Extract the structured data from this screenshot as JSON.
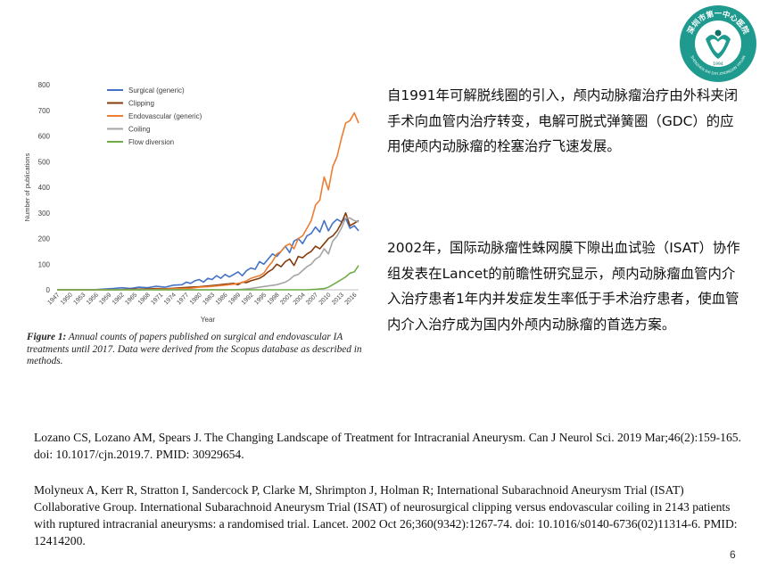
{
  "logo": {
    "top_text": "深圳市第一中心医院",
    "bottom_text": "SHENZHEN SHI DIYI ZHONGXIN YIYUAN",
    "year": "1994",
    "colors": {
      "primary": "#1f9a8e",
      "secondary": "#0f6e66"
    }
  },
  "chart_data": {
    "type": "line",
    "xlabel": "Year",
    "ylabel": "Number of publications",
    "ylim": [
      0,
      800
    ],
    "yticks": [
      0,
      100,
      200,
      300,
      400,
      500,
      600,
      700,
      800
    ],
    "xlim": [
      1947,
      2017
    ],
    "xticks": [
      1947,
      1950,
      1953,
      1956,
      1959,
      1962,
      1965,
      1968,
      1971,
      1974,
      1977,
      1980,
      1983,
      1986,
      1989,
      1992,
      1995,
      1998,
      2001,
      2004,
      2007,
      2010,
      2013,
      2016
    ],
    "legend_position": "top-center",
    "grid": false,
    "series": [
      {
        "name": "Surgical (generic)",
        "color": "#4472c4",
        "x": [
          1947,
          1955,
          1960,
          1962,
          1964,
          1966,
          1968,
          1970,
          1972,
          1974,
          1976,
          1977,
          1978,
          1979,
          1980,
          1981,
          1982,
          1983,
          1984,
          1985,
          1986,
          1987,
          1988,
          1989,
          1990,
          1991,
          1992,
          1993,
          1994,
          1995,
          1996,
          1997,
          1998,
          1999,
          2000,
          2001,
          2002,
          2003,
          2004,
          2005,
          2006,
          2007,
          2008,
          2009,
          2010,
          2011,
          2012,
          2013,
          2014,
          2015,
          2016,
          2017
        ],
        "y": [
          0,
          0,
          5,
          8,
          5,
          10,
          8,
          14,
          10,
          18,
          20,
          30,
          25,
          35,
          40,
          30,
          45,
          40,
          55,
          45,
          60,
          50,
          60,
          70,
          55,
          75,
          85,
          80,
          110,
          100,
          120,
          140,
          130,
          150,
          170,
          145,
          190,
          200,
          180,
          210,
          220,
          245,
          225,
          270,
          230,
          260,
          275,
          265,
          280,
          240,
          250,
          230
        ]
      },
      {
        "name": "Clipping",
        "color": "#843c0c",
        "x": [
          1947,
          1960,
          1964,
          1968,
          1970,
          1972,
          1974,
          1976,
          1978,
          1980,
          1982,
          1984,
          1986,
          1988,
          1989,
          1990,
          1991,
          1992,
          1993,
          1994,
          1995,
          1996,
          1997,
          1998,
          1999,
          2000,
          2001,
          2002,
          2003,
          2004,
          2005,
          2006,
          2007,
          2008,
          2009,
          2010,
          2011,
          2012,
          2013,
          2014,
          2015,
          2016,
          2017
        ],
        "y": [
          0,
          0,
          2,
          3,
          5,
          4,
          6,
          8,
          10,
          12,
          15,
          18,
          22,
          25,
          20,
          30,
          28,
          35,
          40,
          45,
          55,
          70,
          80,
          100,
          90,
          110,
          120,
          95,
          130,
          125,
          140,
          150,
          170,
          160,
          180,
          200,
          210,
          230,
          260,
          300,
          250,
          260,
          270
        ]
      },
      {
        "name": "Endovascular (generic)",
        "color": "#ed7d31",
        "x": [
          1947,
          1965,
          1970,
          1975,
          1978,
          1980,
          1982,
          1984,
          1986,
          1988,
          1990,
          1991,
          1992,
          1993,
          1994,
          1995,
          1996,
          1997,
          1998,
          1999,
          2000,
          2001,
          2002,
          2003,
          2004,
          2005,
          2006,
          2007,
          2008,
          2009,
          2010,
          2011,
          2012,
          2013,
          2014,
          2015,
          2016,
          2017
        ],
        "y": [
          0,
          0,
          2,
          4,
          6,
          10,
          12,
          15,
          18,
          22,
          28,
          35,
          45,
          50,
          55,
          65,
          90,
          110,
          140,
          150,
          170,
          180,
          160,
          200,
          210,
          240,
          270,
          330,
          350,
          440,
          390,
          480,
          520,
          590,
          650,
          660,
          690,
          650
        ]
      },
      {
        "name": "Coiling",
        "color": "#a5a5a5",
        "x": [
          1947,
          1988,
          1990,
          1992,
          1994,
          1996,
          1998,
          2000,
          2001,
          2002,
          2003,
          2004,
          2005,
          2006,
          2007,
          2008,
          2009,
          2010,
          2011,
          2012,
          2013,
          2014,
          2015,
          2016,
          2017
        ],
        "y": [
          0,
          0,
          2,
          5,
          10,
          15,
          20,
          30,
          40,
          55,
          60,
          75,
          90,
          100,
          120,
          130,
          160,
          140,
          190,
          210,
          240,
          280,
          280,
          270,
          265
        ]
      },
      {
        "name": "Flow diversion",
        "color": "#70ad47",
        "x": [
          1947,
          2005,
          2006,
          2007,
          2008,
          2009,
          2010,
          2011,
          2012,
          2013,
          2014,
          2015,
          2016,
          2017
        ],
        "y": [
          0,
          0,
          1,
          2,
          3,
          5,
          10,
          20,
          30,
          40,
          50,
          65,
          70,
          95
        ]
      }
    ]
  },
  "caption": {
    "label": "Figure 1:",
    "text": "Annual counts of papers published on surgical and endovascular IA treatments until 2017. Data were derived from the Scopus database as described in methods."
  },
  "paragraphs": {
    "p1": "自1991年可解脱线圈的引入，颅内动脉瘤治疗由外科夹闭手术向血管内治疗转变，电解可脱式弹簧圈（GDC）的应用使颅内动脉瘤的栓塞治疗飞速发展。",
    "p2": "2002年，国际动脉瘤性蛛网膜下隙出血试验（ISAT）协作组发表在Lancet的前瞻性研究显示，颅内动脉瘤血管内介入治疗患者1年内并发症发生率低于手术治疗患者，使血管内介入治疗成为国内外颅内动脉瘤的首选方案。"
  },
  "references": {
    "ref1": "Lozano CS, Lozano AM, Spears J. The Changing Landscape of Treatment for Intracranial Aneurysm. Can J Neurol Sci. 2019 Mar;46(2):159-165. doi: 10.1017/cjn.2019.7. PMID: 30929654.",
    "ref2": "Molyneux A, Kerr R, Stratton I, Sandercock P, Clarke M, Shrimpton J, Holman R; International Subarachnoid Aneurysm Trial (ISAT) Collaborative Group. International Subarachnoid Aneurysm Trial (ISAT) of neurosurgical clipping versus endovascular coiling in 2143 patients with ruptured intracranial aneurysms: a randomised trial. Lancet. 2002 Oct 26;360(9342):1267-74. doi: 10.1016/s0140-6736(02)11314-6. PMID: 12414200."
  },
  "page_number": "6"
}
